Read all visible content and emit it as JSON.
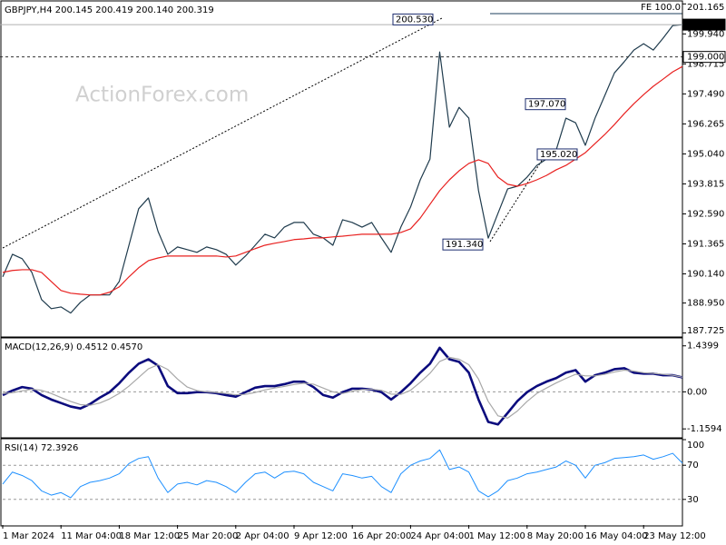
{
  "chart_data": [
    {
      "type": "line",
      "title": "GBPJPY,H4  200.145 200.419 200.140 200.319",
      "watermark": "ActionForex.com",
      "fe_label": "FE 100.0",
      "categories": [
        "1 Mar 2024",
        null,
        null,
        null,
        null,
        null,
        "11 Mar 04:00",
        null,
        null,
        null,
        null,
        null,
        "18 Mar 12:00",
        null,
        null,
        null,
        null,
        null,
        "25 Mar 20:00",
        null,
        null,
        null,
        null,
        null,
        "2 Apr 04:00",
        null,
        null,
        null,
        null,
        null,
        "9 Apr 12:00",
        null,
        null,
        null,
        null,
        null,
        "16 Apr 20:00",
        null,
        null,
        null,
        null,
        null,
        "24 Apr 04:00",
        null,
        null,
        null,
        null,
        null,
        "1 May 12:00",
        null,
        null,
        null,
        null,
        null,
        "8 May 20:00",
        null,
        null,
        null,
        null,
        null,
        "16 May 04:00",
        null,
        null,
        null,
        null,
        null,
        "23 May 12:00",
        null,
        null,
        null,
        null
      ],
      "series": [
        {
          "color": "#1f3b4d",
          "width": 1.2,
          "values": [
            190.02,
            190.94,
            190.76,
            190.2,
            189.09,
            188.72,
            188.79,
            188.54,
            188.98,
            189.28,
            189.28,
            189.28,
            189.83,
            191.31,
            192.8,
            193.24,
            191.87,
            190.94,
            191.24,
            191.13,
            191.02,
            191.24,
            191.13,
            190.94,
            190.5,
            190.87,
            191.31,
            191.76,
            191.61,
            192.05,
            192.24,
            192.24,
            191.76,
            191.61,
            191.31,
            192.35,
            192.24,
            192.05,
            192.24,
            191.61,
            191.02,
            192.05,
            192.87,
            193.98,
            194.83,
            199.2,
            196.13,
            196.94,
            196.5,
            193.54,
            191.6,
            192.61,
            193.61,
            193.72,
            194.09,
            194.57,
            194.83,
            195.2,
            196.5,
            196.31,
            195.39,
            196.5,
            197.42,
            198.35,
            198.8,
            199.28,
            199.54,
            199.28,
            199.76,
            200.28,
            200.319
          ]
        },
        {
          "color": "#e8201f",
          "width": 1.2,
          "values": [
            190.2,
            190.28,
            190.31,
            190.31,
            190.2,
            189.83,
            189.46,
            189.35,
            189.31,
            189.28,
            189.28,
            189.39,
            189.61,
            190.02,
            190.39,
            190.68,
            190.79,
            190.87,
            190.87,
            190.87,
            190.87,
            190.87,
            190.87,
            190.83,
            190.87,
            191.02,
            191.17,
            191.31,
            191.39,
            191.46,
            191.54,
            191.57,
            191.61,
            191.61,
            191.65,
            191.68,
            191.72,
            191.76,
            191.76,
            191.76,
            191.76,
            191.83,
            191.98,
            192.42,
            192.98,
            193.54,
            193.98,
            194.35,
            194.65,
            194.8,
            194.65,
            194.09,
            193.8,
            193.72,
            193.83,
            193.98,
            194.16,
            194.39,
            194.57,
            194.83,
            195.09,
            195.46,
            195.83,
            196.24,
            196.68,
            197.09,
            197.46,
            197.8,
            198.09,
            198.39,
            198.61
          ]
        }
      ],
      "ylim": [
        187.6,
        201.25
      ],
      "yticks": [
        201.165,
        {
          "value": 199.94,
          "label": "199.940"
        },
        198.715,
        {
          "value": 197.49,
          "label": "197.490"
        },
        196.265,
        {
          "value": 195.04,
          "label": "195.040"
        },
        193.815,
        {
          "value": 192.59,
          "label": "192.590"
        },
        191.365,
        {
          "value": 190.14,
          "label": "190.140"
        },
        {
          "value": 188.95,
          "label": "188.950"
        },
        187.725
      ],
      "price_levels": [
        {
          "value": 199,
          "label": "199.000",
          "style": "dashed"
        },
        {
          "value": 200.319,
          "label": "200.319",
          "style": "current"
        }
      ],
      "annotations": [
        {
          "value": 200.53,
          "label": "200.530"
        },
        {
          "value": 191.34,
          "label": "191.340"
        },
        {
          "value": 197.07,
          "label": "197.070"
        },
        {
          "value": 195.02,
          "label": "195.020"
        }
      ]
    },
    {
      "type": "line",
      "title": "MACD(12,26,9) 0.4512 0.4570",
      "series": [
        {
          "color": "#0b0b7d",
          "width": 2.6,
          "values": [
            -0.1,
            0.04,
            0.15,
            0.1,
            -0.1,
            -0.24,
            -0.35,
            -0.46,
            -0.52,
            -0.38,
            -0.18,
            -0.01,
            0.27,
            0.6,
            0.88,
            1.02,
            0.82,
            0.18,
            -0.04,
            -0.04,
            -0.01,
            -0.01,
            -0.04,
            -0.1,
            -0.15,
            -0.01,
            0.13,
            0.18,
            0.18,
            0.24,
            0.32,
            0.32,
            0.15,
            -0.1,
            -0.18,
            -0.01,
            0.1,
            0.1,
            0.07,
            -0.01,
            -0.24,
            -0.01,
            0.27,
            0.6,
            0.88,
            1.38,
            1.02,
            0.94,
            0.6,
            -0.24,
            -0.94,
            -1.02,
            -0.66,
            -0.29,
            -0.01,
            0.18,
            0.32,
            0.43,
            0.6,
            0.68,
            0.32,
            0.52,
            0.6,
            0.71,
            0.74,
            0.6,
            0.57,
            0.57,
            0.52,
            0.52,
            0.4512
          ]
        },
        {
          "color": "#a8a8a8",
          "width": 1.2,
          "values": [
            -0.05,
            -0.03,
            0.03,
            0.08,
            0.05,
            -0.05,
            -0.18,
            -0.3,
            -0.4,
            -0.42,
            -0.35,
            -0.22,
            -0.05,
            0.18,
            0.45,
            0.72,
            0.85,
            0.7,
            0.4,
            0.15,
            0.04,
            0,
            -0.02,
            -0.05,
            -0.09,
            -0.08,
            -0.02,
            0.06,
            0.12,
            0.17,
            0.23,
            0.27,
            0.24,
            0.12,
            0,
            -0.05,
            0.02,
            0.07,
            0.08,
            0.05,
            -0.07,
            -0.08,
            0.05,
            0.3,
            0.58,
            0.95,
            1.08,
            1.02,
            0.85,
            0.4,
            -0.3,
            -0.75,
            -0.82,
            -0.6,
            -0.3,
            -0.05,
            0.12,
            0.28,
            0.42,
            0.55,
            0.5,
            0.5,
            0.55,
            0.62,
            0.68,
            0.65,
            0.6,
            0.58,
            0.55,
            0.52,
            0.457
          ]
        }
      ],
      "ylim": [
        -1.41,
        1.66
      ],
      "yticks": [
        1.4399,
        {
          "value": 0,
          "label": "0.00"
        },
        -1.1594
      ],
      "hlines": [
        0
      ]
    },
    {
      "type": "line",
      "title": "RSI(14) 72.3926",
      "series": [
        {
          "color": "#1e90ff",
          "width": 1,
          "values": [
            48,
            62,
            58,
            52,
            40,
            35,
            38,
            32,
            45,
            50,
            52,
            55,
            60,
            72,
            78,
            80,
            55,
            38,
            48,
            50,
            47,
            52,
            50,
            45,
            38,
            50,
            60,
            62,
            55,
            62,
            63,
            60,
            50,
            45,
            40,
            60,
            58,
            55,
            57,
            45,
            38,
            60,
            70,
            75,
            78,
            88,
            65,
            68,
            62,
            40,
            33,
            40,
            52,
            55,
            60,
            62,
            65,
            68,
            75,
            70,
            55,
            70,
            73,
            78,
            79,
            80,
            82,
            77,
            80,
            84,
            72.3926
          ]
        }
      ],
      "ylim": [
        0,
        100
      ],
      "yticks": [
        100,
        70,
        30
      ],
      "hlines": [
        70,
        30
      ]
    }
  ]
}
